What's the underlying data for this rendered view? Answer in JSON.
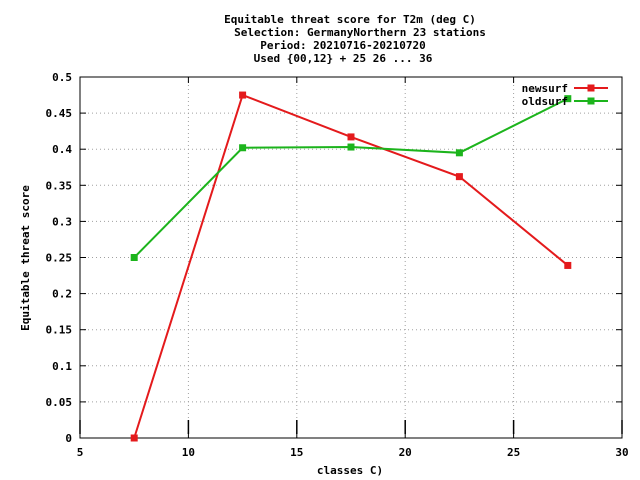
{
  "chart_data": {
    "type": "line",
    "title_lines": [
      "Equitable threat score  for T2m (deg C)",
      "Selection: GermanyNorthern     23 stations",
      "Period: 20210716-20210720",
      "Used {00,12} + 25 26 ... 36"
    ],
    "xlabel": "classes C)",
    "ylabel": "Equitable threat score",
    "xlim": [
      5,
      30
    ],
    "ylim": [
      0,
      0.5
    ],
    "x_ticks": [
      5,
      10,
      15,
      20,
      25,
      30
    ],
    "x_tick_labels": [
      "5",
      "10",
      "15",
      "20",
      "25",
      "30"
    ],
    "y_ticks": [
      0,
      0.05,
      0.1,
      0.15,
      0.2,
      0.25,
      0.3,
      0.35,
      0.4,
      0.45,
      0.5
    ],
    "y_tick_labels": [
      "0",
      "0.05",
      "0.1",
      "0.15",
      "0.2",
      "0.25",
      "0.3",
      "0.35",
      "0.4",
      "0.45",
      "0.5"
    ],
    "grid": true,
    "legend_position": "top-right",
    "series": [
      {
        "name": "newsurf",
        "color": "#e41a1c",
        "x": [
          7.5,
          12.5,
          17.5,
          22.5,
          27.5
        ],
        "y": [
          0.0,
          0.475,
          0.417,
          0.362,
          0.239
        ]
      },
      {
        "name": "oldsurf",
        "color": "#1cb41c",
        "x": [
          7.5,
          12.5,
          17.5,
          22.5,
          27.5
        ],
        "y": [
          0.25,
          0.402,
          0.403,
          0.395,
          0.47
        ]
      }
    ]
  }
}
